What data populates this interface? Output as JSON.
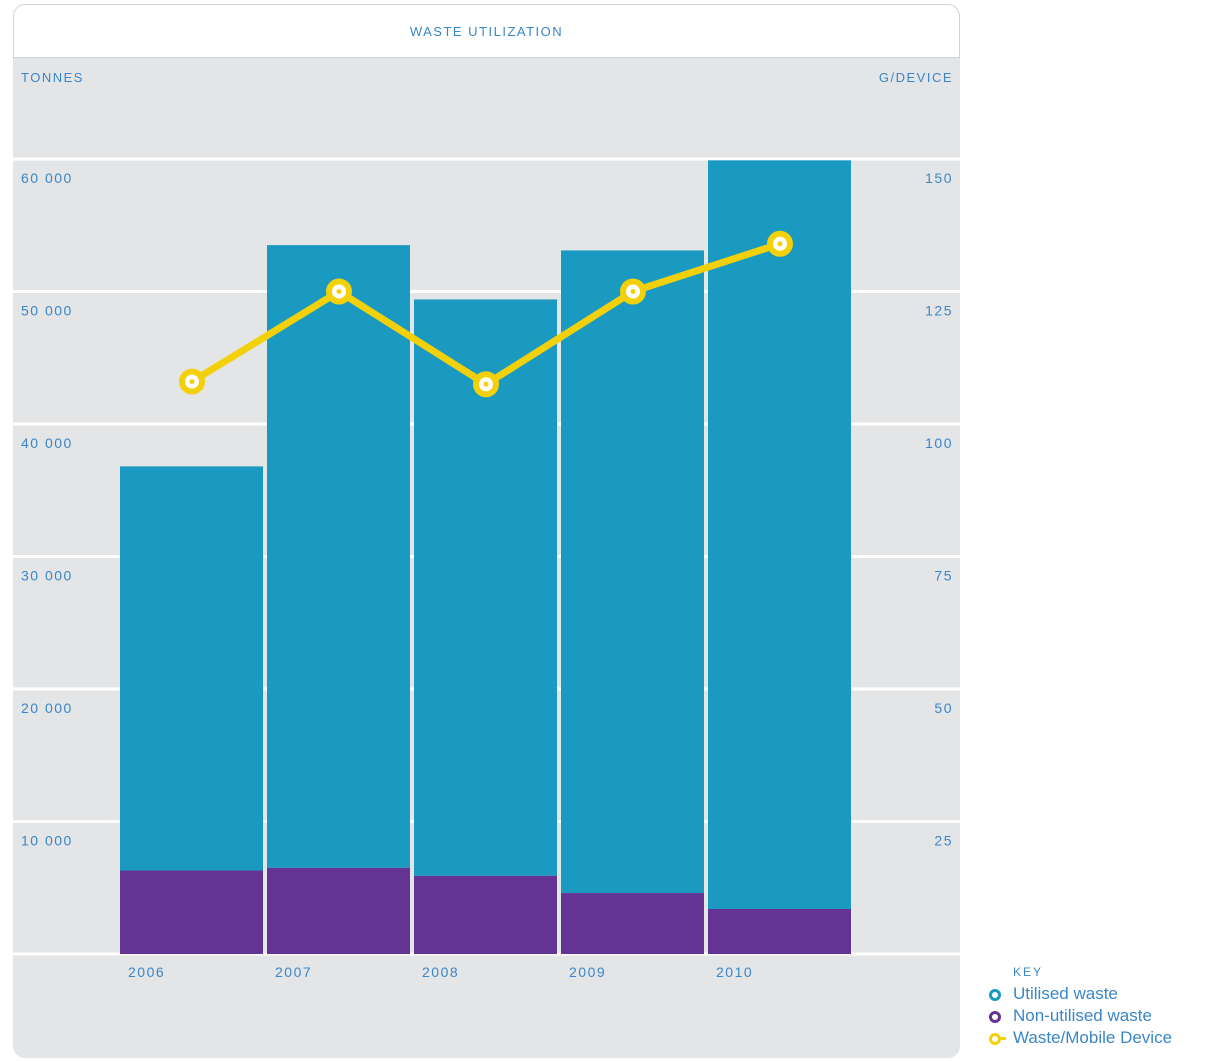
{
  "chart_data": {
    "type": "bar",
    "title": "WASTE UTILIZATION",
    "ylabel_left": "TONNES",
    "ylabel_right": "G/DEVICE",
    "categories": [
      "2006",
      "2007",
      "2008",
      "2009",
      "2010"
    ],
    "ylim_left": [
      0,
      60000
    ],
    "ylim_right": [
      0,
      150
    ],
    "yticks_left": [
      "10 000",
      "20 000",
      "30 000",
      "40 000",
      "50 000",
      "60 000"
    ],
    "yticks_right": [
      "25",
      "50",
      "75",
      "100",
      "125",
      "150"
    ],
    "series": [
      {
        "name": "Utilised waste",
        "kind": "bar",
        "stack": "base_on_non_utilised",
        "color": "#1a99c1",
        "values": [
          30500,
          47000,
          43500,
          48500,
          56500
        ]
      },
      {
        "name": "Non-utilised waste",
        "kind": "bar",
        "color": "#643494",
        "values": [
          6300,
          6500,
          5900,
          4600,
          3400
        ]
      },
      {
        "name": "Waste/Mobile Device",
        "kind": "line",
        "axis": "right",
        "color": "#f3d10a",
        "values": [
          108,
          125,
          107.5,
          125,
          134
        ]
      }
    ],
    "legend": {
      "title": "KEY",
      "position": "bottom-right"
    },
    "grid": true
  }
}
